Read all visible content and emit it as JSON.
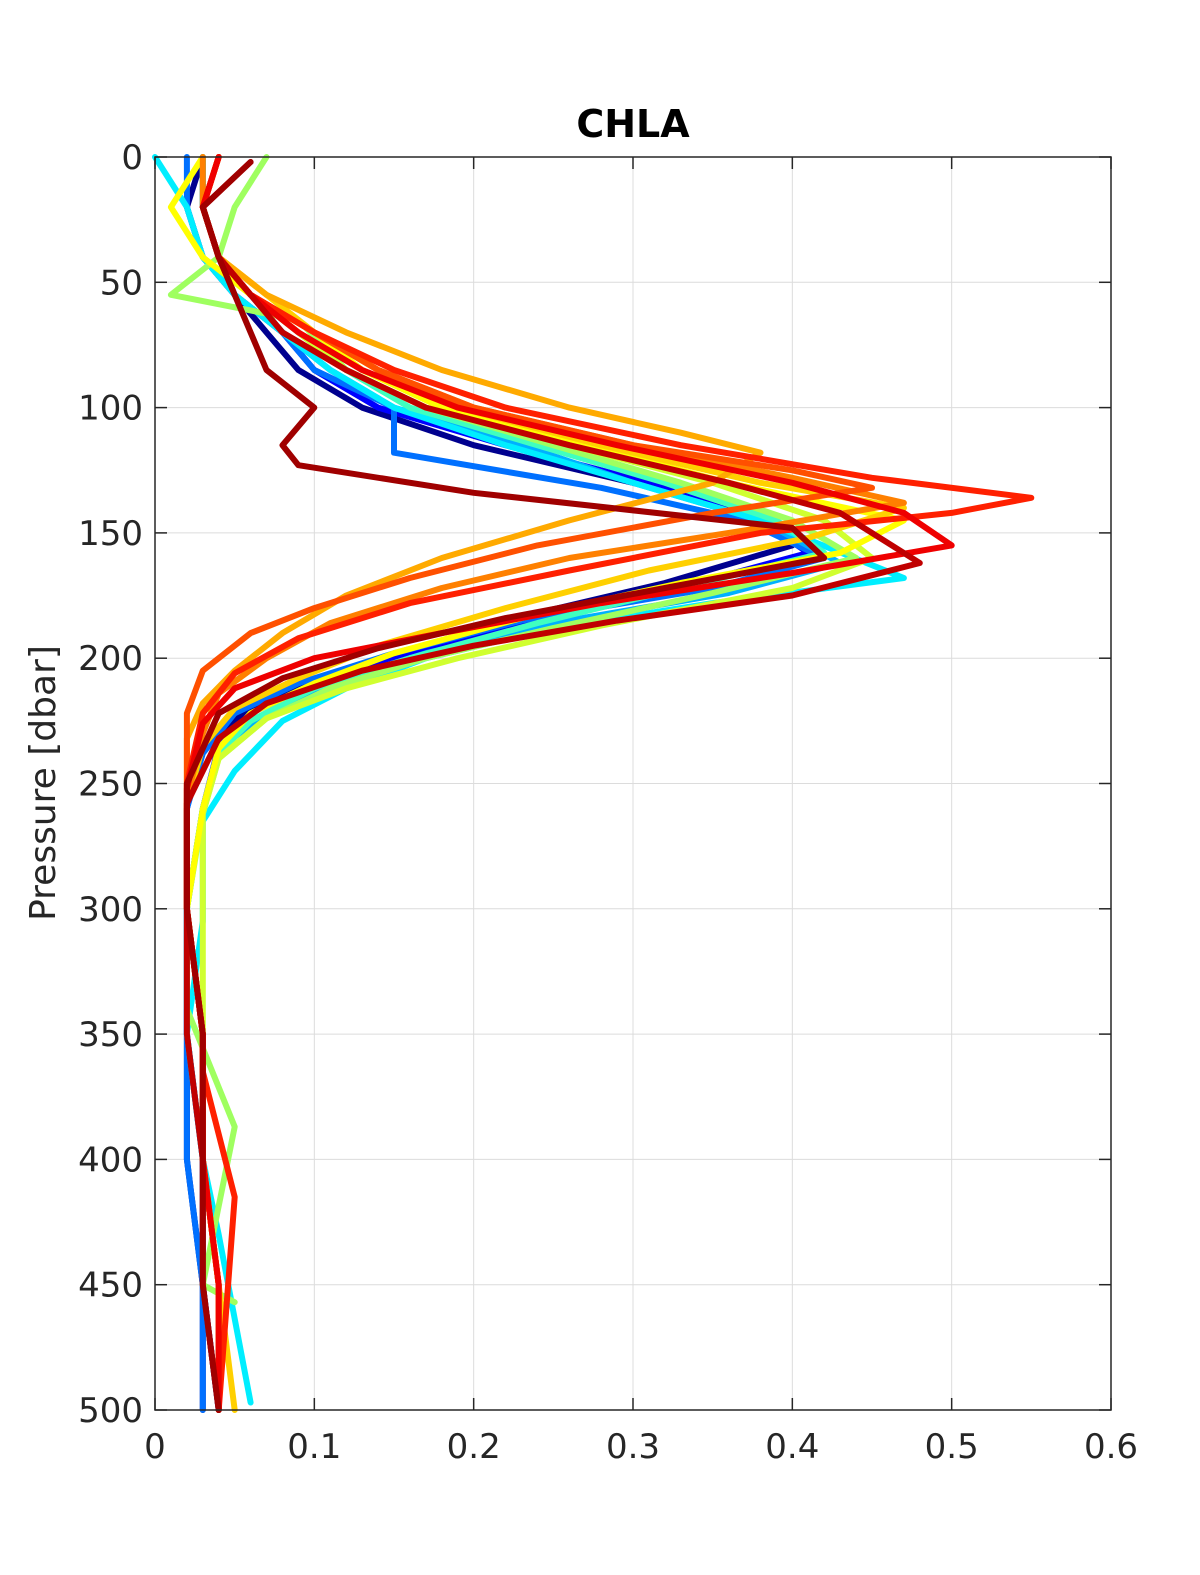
{
  "chart_data": {
    "type": "line",
    "title": "CHLA",
    "xlabel": "",
    "ylabel": "Pressure [dbar]",
    "xlim": [
      0,
      0.6
    ],
    "ylim": [
      0,
      500
    ],
    "y_reversed": true,
    "grid": true,
    "legend": "none",
    "x_ticks": [
      0,
      0.1,
      0.2,
      0.3,
      0.4,
      0.5,
      0.6
    ],
    "x_tick_labels": [
      "0",
      "0.1",
      "0.2",
      "0.3",
      "0.4",
      "0.5",
      "0.6"
    ],
    "y_ticks": [
      0,
      50,
      100,
      150,
      200,
      250,
      300,
      350,
      400,
      450,
      500
    ],
    "y_tick_labels": [
      "0",
      "50",
      "100",
      "150",
      "200",
      "250",
      "300",
      "350",
      "400",
      "450",
      "500"
    ],
    "colormap": "jet",
    "series": [
      {
        "color": "#00008f",
        "x": [
          0.03,
          0.02,
          0.03,
          0.05,
          0.07,
          0.09,
          0.13,
          0.2,
          0.3,
          0.39,
          0.4,
          0.32,
          0.22,
          0.15,
          0.1,
          0.06,
          0.03,
          0.02,
          0.02,
          0.02,
          0.02,
          0.03,
          0.03
        ],
        "y": [
          0,
          20,
          40,
          55,
          70,
          85,
          100,
          115,
          130,
          145,
          155,
          170,
          185,
          200,
          210,
          220,
          235,
          260,
          300,
          350,
          400,
          450,
          500
        ]
      },
      {
        "color": "#0000ff",
        "x": [
          0.03,
          0.03,
          0.04,
          0.05,
          0.08,
          0.1,
          0.14,
          0.22,
          0.31,
          0.38,
          0.41,
          0.34,
          0.24,
          0.16,
          0.1,
          0.06,
          0.04,
          0.03,
          0.02,
          0.02,
          0.03,
          0.03,
          0.04
        ],
        "y": [
          0,
          20,
          40,
          55,
          70,
          85,
          100,
          115,
          130,
          145,
          158,
          170,
          185,
          198,
          210,
          222,
          235,
          260,
          300,
          350,
          400,
          450,
          500
        ]
      },
      {
        "color": "#0070ff",
        "x": [
          0.02,
          0.02,
          0.03,
          0.05,
          0.08,
          0.1,
          0.15,
          0.15,
          0.28,
          0.37,
          0.42,
          0.35,
          0.23,
          0.15,
          0.09,
          0.05,
          0.03,
          0.02,
          0.02,
          0.02,
          0.02,
          0.03,
          0.03
        ],
        "y": [
          0,
          20,
          40,
          55,
          70,
          85,
          100,
          118,
          132,
          145,
          160,
          172,
          185,
          198,
          210,
          222,
          238,
          260,
          300,
          350,
          400,
          450,
          500
        ]
      },
      {
        "color": "#00b0ff",
        "x": [
          0.03,
          0.03,
          0.04,
          0.06,
          0.08,
          0.11,
          0.15,
          0.23,
          0.3,
          0.38,
          0.43,
          0.36,
          0.25,
          0.17,
          0.11,
          0.07,
          0.04,
          0.03,
          0.02,
          0.02,
          0.03,
          0.03,
          0.04
        ],
        "y": [
          0,
          20,
          40,
          55,
          70,
          85,
          100,
          115,
          130,
          145,
          162,
          174,
          186,
          198,
          210,
          222,
          236,
          260,
          300,
          350,
          400,
          450,
          500
        ]
      },
      {
        "color": "#00eeff",
        "x": [
          0.0,
          0.02,
          0.03,
          0.05,
          0.08,
          0.11,
          0.15,
          0.22,
          0.3,
          0.38,
          0.47,
          0.35,
          0.25,
          0.17,
          0.12,
          0.08,
          0.05,
          0.03,
          0.03,
          0.02,
          0.03,
          0.04,
          0.06
        ],
        "y": [
          0,
          20,
          40,
          55,
          70,
          85,
          100,
          115,
          130,
          145,
          168,
          178,
          188,
          200,
          212,
          225,
          245,
          265,
          305,
          350,
          400,
          430,
          497
        ]
      },
      {
        "color": "#40ffbf",
        "x": [
          0.03,
          0.03,
          0.04,
          0.06,
          0.09,
          0.12,
          0.16,
          0.24,
          0.32,
          0.39,
          0.42,
          0.33,
          0.24,
          0.16,
          0.1,
          0.06,
          0.04,
          0.03,
          0.02,
          0.03,
          0.03,
          0.04,
          0.04
        ],
        "y": [
          0,
          20,
          40,
          55,
          70,
          85,
          100,
          115,
          130,
          145,
          158,
          172,
          186,
          200,
          212,
          225,
          238,
          260,
          300,
          350,
          400,
          450,
          500
        ]
      },
      {
        "color": "#9fff60",
        "x": [
          0.07,
          0.05,
          0.04,
          0.01,
          0.09,
          0.12,
          0.17,
          0.25,
          0.33,
          0.4,
          0.44,
          0.35,
          0.25,
          0.17,
          0.11,
          0.07,
          0.04,
          0.03,
          0.02,
          0.02,
          0.05,
          0.03,
          0.05
        ],
        "y": [
          0,
          20,
          40,
          55,
          65,
          85,
          100,
          115,
          130,
          145,
          160,
          174,
          188,
          200,
          212,
          224,
          240,
          262,
          300,
          340,
          387,
          450,
          457
        ]
      },
      {
        "color": "#d0ff30",
        "x": [
          0.04,
          0.03,
          0.04,
          0.06,
          0.09,
          0.12,
          0.17,
          0.26,
          0.35,
          0.42,
          0.45,
          0.4,
          0.28,
          0.19,
          0.12,
          0.07,
          0.04,
          0.03,
          0.03,
          0.03,
          0.03,
          0.04,
          0.04
        ],
        "y": [
          0,
          20,
          40,
          55,
          70,
          85,
          100,
          115,
          130,
          145,
          160,
          172,
          187,
          200,
          212,
          224,
          240,
          262,
          300,
          350,
          400,
          450,
          500
        ]
      },
      {
        "color": "#ffff00",
        "x": [
          0.03,
          0.01,
          0.03,
          0.06,
          0.1,
          0.13,
          0.18,
          0.27,
          0.36,
          0.47,
          0.43,
          0.33,
          0.23,
          0.15,
          0.1,
          0.06,
          0.04,
          0.03,
          0.02,
          0.03,
          0.03,
          0.04,
          0.04
        ],
        "y": [
          0,
          20,
          40,
          55,
          70,
          85,
          100,
          115,
          130,
          145,
          158,
          170,
          184,
          198,
          210,
          222,
          236,
          260,
          300,
          350,
          400,
          450,
          500
        ]
      },
      {
        "color": "#ffd000",
        "x": [
          0.04,
          0.03,
          0.04,
          0.07,
          0.1,
          0.14,
          0.19,
          0.28,
          0.38,
          0.47,
          0.41,
          0.31,
          0.22,
          0.14,
          0.09,
          0.05,
          0.03,
          0.02,
          0.02,
          0.03,
          0.03,
          0.04,
          0.05
        ],
        "y": [
          0,
          20,
          40,
          55,
          70,
          85,
          100,
          115,
          130,
          140,
          152,
          165,
          180,
          195,
          208,
          220,
          235,
          258,
          300,
          350,
          400,
          450,
          500
        ]
      },
      {
        "color": "#ffaa00",
        "x": [
          0.04,
          0.03,
          0.04,
          0.07,
          0.12,
          0.18,
          0.26,
          0.33,
          0.38,
          0.35,
          0.26,
          0.18,
          0.12,
          0.08,
          0.05,
          0.03,
          0.02,
          0.02,
          0.02,
          0.03,
          0.03,
          0.04,
          0.04
        ],
        "y": [
          0,
          20,
          40,
          55,
          70,
          85,
          100,
          110,
          118,
          130,
          145,
          160,
          175,
          190,
          205,
          218,
          232,
          258,
          300,
          350,
          400,
          450,
          500
        ]
      },
      {
        "color": "#ff8000",
        "x": [
          0.03,
          0.03,
          0.04,
          0.06,
          0.1,
          0.14,
          0.2,
          0.3,
          0.4,
          0.47,
          0.38,
          0.26,
          0.18,
          0.11,
          0.07,
          0.04,
          0.03,
          0.02,
          0.02,
          0.03,
          0.03,
          0.04,
          0.04
        ],
        "y": [
          0,
          20,
          40,
          55,
          70,
          85,
          100,
          115,
          128,
          138,
          148,
          160,
          172,
          186,
          200,
          214,
          230,
          256,
          300,
          350,
          400,
          450,
          500
        ]
      },
      {
        "color": "#ff5000",
        "x": [
          0.04,
          0.03,
          0.04,
          0.06,
          0.1,
          0.14,
          0.2,
          0.3,
          0.4,
          0.45,
          0.35,
          0.24,
          0.16,
          0.1,
          0.06,
          0.03,
          0.02,
          0.02,
          0.02,
          0.03,
          0.03,
          0.04,
          0.04
        ],
        "y": [
          0,
          20,
          40,
          55,
          70,
          85,
          100,
          115,
          125,
          132,
          142,
          155,
          168,
          180,
          190,
          205,
          222,
          250,
          300,
          350,
          400,
          450,
          500
        ]
      },
      {
        "color": "#ff2000",
        "x": [
          0.04,
          0.03,
          0.04,
          0.06,
          0.1,
          0.15,
          0.22,
          0.33,
          0.45,
          0.55,
          0.5,
          0.38,
          0.26,
          0.16,
          0.09,
          0.05,
          0.03,
          0.02,
          0.02,
          0.03,
          0.03,
          0.05,
          0.04
        ],
        "y": [
          0,
          20,
          40,
          55,
          70,
          85,
          100,
          115,
          128,
          136,
          142,
          150,
          165,
          178,
          192,
          206,
          222,
          250,
          300,
          350,
          365,
          415,
          500
        ]
      },
      {
        "color": "#ef0000",
        "x": [
          0.04,
          0.03,
          0.04,
          0.06,
          0.09,
          0.13,
          0.19,
          0.29,
          0.4,
          0.47,
          0.5,
          0.4,
          0.28,
          0.18,
          0.1,
          0.05,
          0.03,
          0.02,
          0.02,
          0.03,
          0.03,
          0.04,
          0.04
        ],
        "y": [
          0,
          20,
          40,
          55,
          70,
          85,
          100,
          115,
          130,
          142,
          155,
          166,
          178,
          190,
          200,
          212,
          226,
          252,
          300,
          350,
          400,
          450,
          500
        ]
      },
      {
        "color": "#c00000",
        "x": [
          0.06,
          0.03,
          0.04,
          0.06,
          0.08,
          0.12,
          0.17,
          0.26,
          0.36,
          0.43,
          0.48,
          0.4,
          0.29,
          0.2,
          0.13,
          0.07,
          0.04,
          0.02,
          0.02,
          0.02,
          0.03,
          0.03,
          0.04
        ],
        "y": [
          2,
          20,
          40,
          55,
          70,
          85,
          100,
          115,
          130,
          142,
          162,
          175,
          185,
          195,
          205,
          218,
          232,
          258,
          300,
          350,
          400,
          450,
          500
        ]
      },
      {
        "color": "#a00000",
        "x": [
          0.06,
          0.03,
          0.04,
          0.05,
          0.06,
          0.07,
          0.1,
          0.08,
          0.09,
          0.2,
          0.4,
          0.42,
          0.32,
          0.22,
          0.14,
          0.08,
          0.04,
          0.02,
          0.02,
          0.03,
          0.03,
          0.03,
          0.04
        ],
        "y": [
          2,
          20,
          40,
          55,
          70,
          85,
          100,
          115,
          123,
          134,
          148,
          160,
          172,
          184,
          196,
          208,
          222,
          250,
          300,
          350,
          400,
          450,
          500
        ]
      }
    ]
  }
}
